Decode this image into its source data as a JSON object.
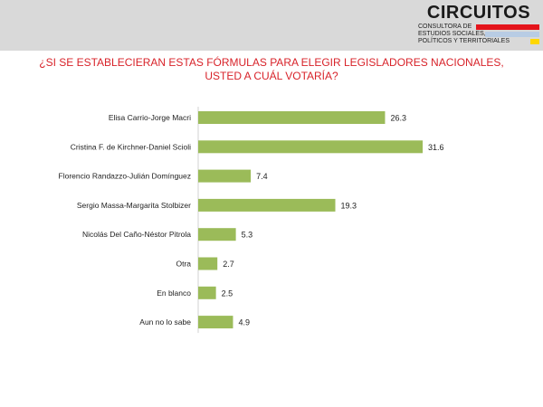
{
  "brand": {
    "name": "CIRCUITOS",
    "lines": [
      "CONSULTORA DE",
      "ESTUDIOS SOCIALES,",
      "POLÍTICOS Y TERRITORIALES"
    ],
    "bar_colors": [
      "#e4141b",
      "#b8cce4",
      "#ffd700"
    ]
  },
  "chart_data": {
    "type": "bar",
    "orientation": "horizontal",
    "title": "¿SI SE ESTABLECIERAN ESTAS FÓRMULAS PARA ELEGIR LEGISLADORES NACIONALES, USTED A CUÁL VOTARÍA?",
    "categories": [
      "Elisa Carrio-Jorge Macri",
      "Cristina F. de Kirchner-Daniel Scioli",
      "Florencio Randazzo-Julián Domínguez",
      "Sergio Massa-Margarita Stolbizer",
      "Nicolás Del Caño-Néstor Pitrola",
      "Otra",
      "En blanco",
      "Aun no lo sabe"
    ],
    "values": [
      26.3,
      31.6,
      7.4,
      19.3,
      5.3,
      2.7,
      2.5,
      4.9
    ],
    "value_labels": [
      "26.3",
      "31.6",
      "7.4",
      "19.3",
      "5.3",
      "2.7",
      "2.5",
      "4.9"
    ],
    "bar_color": "#9bbb59",
    "xlim": [
      0,
      33
    ],
    "grid": false,
    "legend": "none"
  }
}
